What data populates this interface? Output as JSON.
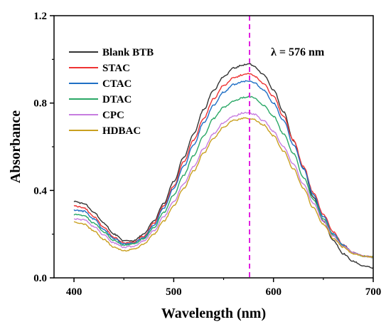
{
  "chart_data": {
    "type": "line",
    "xlabel": "Wavelength (nm)",
    "ylabel": "Absorbance",
    "xlim": [
      380,
      700
    ],
    "ylim": [
      0.0,
      1.2
    ],
    "x_ticks": [
      400,
      500,
      600,
      700
    ],
    "y_ticks": [
      0.0,
      0.4,
      0.8,
      1.2
    ],
    "y_tick_labels": [
      "0.0",
      "0.4",
      "0.8",
      "1.2"
    ],
    "grid": false,
    "legend_position": "top-left",
    "annotation": {
      "text": "λ = 576 nm",
      "x": 576
    },
    "series": [
      {
        "name": "Blank BTB",
        "color": "#333333",
        "x": [
          400,
          410,
          420,
          430,
          440,
          450,
          460,
          470,
          480,
          490,
          500,
          510,
          520,
          530,
          540,
          550,
          560,
          570,
          576,
          580,
          590,
          600,
          610,
          620,
          630,
          640,
          650,
          660,
          670,
          680,
          690,
          700
        ],
        "y": [
          0.35,
          0.34,
          0.3,
          0.25,
          0.2,
          0.17,
          0.17,
          0.2,
          0.26,
          0.34,
          0.44,
          0.55,
          0.66,
          0.77,
          0.86,
          0.92,
          0.96,
          0.975,
          0.98,
          0.97,
          0.93,
          0.86,
          0.76,
          0.63,
          0.5,
          0.37,
          0.26,
          0.17,
          0.11,
          0.075,
          0.055,
          0.045
        ]
      },
      {
        "name": "STAC",
        "color": "#ee3333",
        "x": [
          400,
          410,
          420,
          430,
          440,
          450,
          460,
          470,
          480,
          490,
          500,
          510,
          520,
          530,
          540,
          550,
          560,
          570,
          576,
          580,
          590,
          600,
          610,
          620,
          630,
          640,
          650,
          660,
          670,
          680,
          690,
          700
        ],
        "y": [
          0.33,
          0.32,
          0.28,
          0.23,
          0.185,
          0.16,
          0.165,
          0.19,
          0.25,
          0.33,
          0.42,
          0.53,
          0.63,
          0.73,
          0.82,
          0.88,
          0.915,
          0.93,
          0.935,
          0.925,
          0.89,
          0.83,
          0.74,
          0.63,
          0.51,
          0.39,
          0.29,
          0.21,
          0.15,
          0.115,
          0.1,
          0.095
        ]
      },
      {
        "name": "CTAC",
        "color": "#1f6fc5",
        "x": [
          400,
          410,
          420,
          430,
          440,
          450,
          460,
          470,
          480,
          490,
          500,
          510,
          520,
          530,
          540,
          550,
          560,
          570,
          576,
          580,
          590,
          600,
          610,
          620,
          630,
          640,
          650,
          660,
          670,
          680,
          690,
          700
        ],
        "y": [
          0.31,
          0.305,
          0.27,
          0.22,
          0.18,
          0.155,
          0.16,
          0.185,
          0.24,
          0.32,
          0.41,
          0.51,
          0.61,
          0.71,
          0.79,
          0.85,
          0.885,
          0.9,
          0.9,
          0.895,
          0.86,
          0.8,
          0.72,
          0.61,
          0.5,
          0.38,
          0.28,
          0.2,
          0.15,
          0.115,
          0.1,
          0.095
        ]
      },
      {
        "name": "DTAC",
        "color": "#2aa866",
        "x": [
          400,
          410,
          420,
          430,
          440,
          450,
          460,
          470,
          480,
          490,
          500,
          510,
          520,
          530,
          540,
          550,
          560,
          570,
          576,
          580,
          590,
          600,
          610,
          620,
          630,
          640,
          650,
          660,
          670,
          680,
          690,
          700
        ],
        "y": [
          0.29,
          0.285,
          0.25,
          0.21,
          0.17,
          0.15,
          0.155,
          0.18,
          0.23,
          0.3,
          0.38,
          0.47,
          0.56,
          0.65,
          0.73,
          0.78,
          0.81,
          0.825,
          0.83,
          0.825,
          0.79,
          0.74,
          0.66,
          0.57,
          0.46,
          0.36,
          0.27,
          0.195,
          0.145,
          0.115,
          0.1,
          0.095
        ]
      },
      {
        "name": "CPC",
        "color": "#c77de0",
        "x": [
          400,
          410,
          420,
          430,
          440,
          450,
          460,
          470,
          480,
          490,
          500,
          510,
          520,
          530,
          540,
          550,
          560,
          570,
          576,
          580,
          590,
          600,
          610,
          620,
          630,
          640,
          650,
          660,
          670,
          680,
          690,
          700
        ],
        "y": [
          0.27,
          0.265,
          0.235,
          0.195,
          0.16,
          0.14,
          0.145,
          0.17,
          0.215,
          0.28,
          0.35,
          0.43,
          0.51,
          0.59,
          0.66,
          0.71,
          0.74,
          0.755,
          0.755,
          0.75,
          0.72,
          0.67,
          0.6,
          0.52,
          0.43,
          0.34,
          0.26,
          0.19,
          0.145,
          0.115,
          0.1,
          0.095
        ]
      },
      {
        "name": "HDBAC",
        "color": "#c9a020",
        "x": [
          400,
          410,
          420,
          430,
          440,
          450,
          460,
          470,
          480,
          490,
          500,
          510,
          520,
          530,
          540,
          550,
          560,
          570,
          576,
          580,
          590,
          600,
          610,
          620,
          630,
          640,
          650,
          660,
          670,
          680,
          690,
          700
        ],
        "y": [
          0.255,
          0.245,
          0.215,
          0.175,
          0.14,
          0.125,
          0.13,
          0.155,
          0.2,
          0.26,
          0.33,
          0.41,
          0.49,
          0.57,
          0.64,
          0.69,
          0.72,
          0.73,
          0.73,
          0.725,
          0.7,
          0.65,
          0.58,
          0.5,
          0.41,
          0.32,
          0.245,
          0.18,
          0.14,
          0.11,
          0.1,
          0.095
        ]
      }
    ]
  }
}
